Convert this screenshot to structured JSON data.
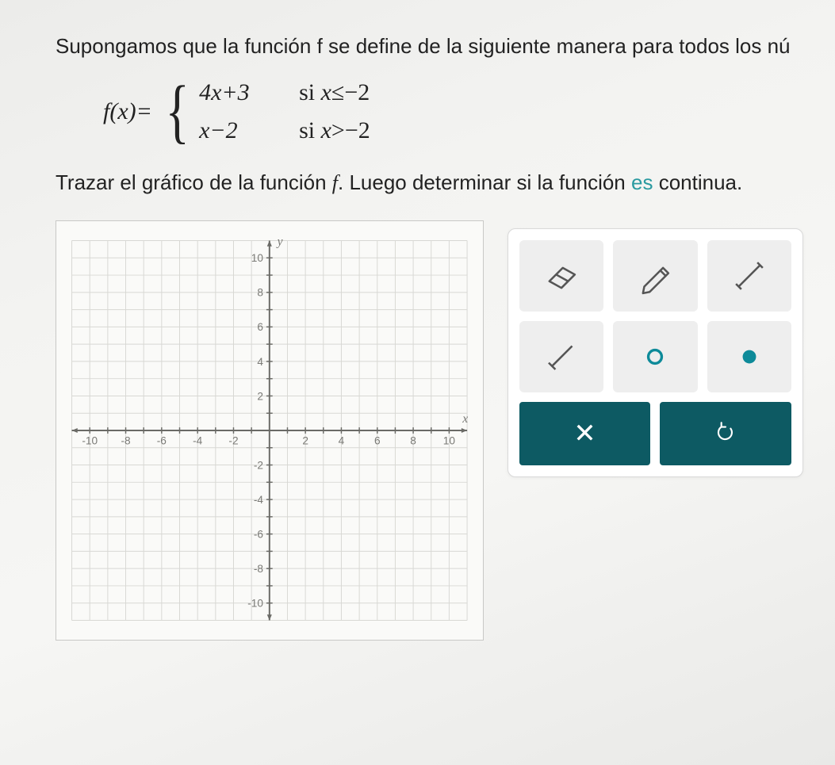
{
  "prompt_text": "Supongamos que la función f se define de la siguiente manera para todos los nú",
  "formula": {
    "lhs": "f(x)=",
    "case1_expr": "4x+3",
    "case1_cond_pre": "si ",
    "case1_cond_var": "x",
    "case1_cond_rel": "≤−2",
    "case2_expr": "x−2",
    "case2_cond_pre": "si ",
    "case2_cond_var": "x",
    "case2_cond_rel": ">−2"
  },
  "instruction": {
    "part1": "Trazar el gráfico de la función ",
    "fn": "f",
    "part2": ". Luego determinar si la función ",
    "hilite": "es",
    "part3": " continua."
  },
  "graph": {
    "xmin": -11,
    "xmax": 11,
    "ymin": -11,
    "ymax": 11,
    "grid_color": "#d8d8d4",
    "axis_color": "#6a6a66",
    "background": "#fafaf8",
    "tick_labels_y": [
      10,
      8,
      6,
      4,
      2,
      -2,
      -4,
      -6,
      -8,
      -10
    ],
    "tick_labels_x": [
      -10,
      -8,
      -6,
      -4,
      -2,
      2,
      4,
      6,
      8,
      10
    ],
    "label_color": "#7a7a76",
    "label_fontsize": 14,
    "axis_label_x": "x",
    "axis_label_y": "y"
  },
  "tools": {
    "accent": "#0d8a99",
    "btn_bg": "#0d5a63"
  }
}
